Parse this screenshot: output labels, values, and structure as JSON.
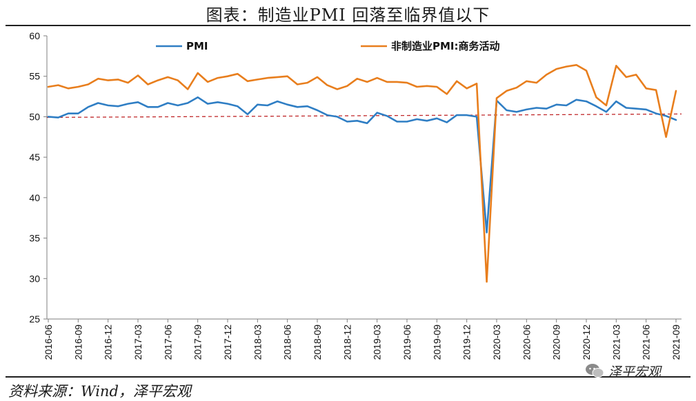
{
  "title": "图表：制造业PMI 回落至临界值以下",
  "source": "资料来源：Wind，泽平宏观",
  "watermark": {
    "text": "泽平宏观",
    "icon": "wechat-icon"
  },
  "colors": {
    "pmi": "#2f7ec4",
    "nonmfg": "#e87e1d",
    "reference": "#c0282a",
    "axis": "#7f7f7f"
  },
  "chart_data": {
    "type": "line",
    "title": "图表：制造业PMI 回落至临界值以下",
    "xlabel": "",
    "ylabel": "",
    "ylim": [
      25,
      60
    ],
    "yticks": [
      25,
      30,
      35,
      40,
      45,
      50,
      55,
      60
    ],
    "x": [
      "2016-06",
      "2016-07",
      "2016-08",
      "2016-09",
      "2016-10",
      "2016-11",
      "2016-12",
      "2017-01",
      "2017-02",
      "2017-03",
      "2017-04",
      "2017-05",
      "2017-06",
      "2017-07",
      "2017-08",
      "2017-09",
      "2017-10",
      "2017-11",
      "2017-12",
      "2018-01",
      "2018-02",
      "2018-03",
      "2018-04",
      "2018-05",
      "2018-06",
      "2018-07",
      "2018-08",
      "2018-09",
      "2018-10",
      "2018-11",
      "2018-12",
      "2019-01",
      "2019-02",
      "2019-03",
      "2019-04",
      "2019-05",
      "2019-06",
      "2019-07",
      "2019-08",
      "2019-09",
      "2019-10",
      "2019-11",
      "2019-12",
      "2020-01",
      "2020-02",
      "2020-03",
      "2020-04",
      "2020-05",
      "2020-06",
      "2020-07",
      "2020-08",
      "2020-09",
      "2020-10",
      "2020-11",
      "2020-12",
      "2021-01",
      "2021-02",
      "2021-03",
      "2021-04",
      "2021-05",
      "2021-06",
      "2021-07",
      "2021-08",
      "2021-09"
    ],
    "xticklabels": [
      "2016-06",
      "2016-09",
      "2016-12",
      "2017-03",
      "2017-06",
      "2017-09",
      "2017-12",
      "2018-03",
      "2018-06",
      "2018-09",
      "2018-12",
      "2019-03",
      "2019-06",
      "2019-09",
      "2019-12",
      "2020-03",
      "2020-06",
      "2020-09",
      "2020-12",
      "2021-03",
      "2021-06",
      "2021-09"
    ],
    "series": [
      {
        "name": "PMI",
        "color": "#2f7ec4",
        "values": [
          50.0,
          49.9,
          50.4,
          50.4,
          51.2,
          51.7,
          51.4,
          51.3,
          51.6,
          51.8,
          51.2,
          51.2,
          51.7,
          51.4,
          51.7,
          52.4,
          51.6,
          51.8,
          51.6,
          51.3,
          50.3,
          51.5,
          51.4,
          51.9,
          51.5,
          51.2,
          51.3,
          50.8,
          50.2,
          50.0,
          49.4,
          49.5,
          49.2,
          50.5,
          50.1,
          49.4,
          49.4,
          49.7,
          49.5,
          49.8,
          49.3,
          50.2,
          50.2,
          50.0,
          35.7,
          52.0,
          50.8,
          50.6,
          50.9,
          51.1,
          51.0,
          51.5,
          51.4,
          52.1,
          51.9,
          51.3,
          50.6,
          51.9,
          51.1,
          51.0,
          50.9,
          50.4,
          50.1,
          49.6
        ]
      },
      {
        "name": "非制造业PMI:商务活动",
        "color": "#e87e1d",
        "values": [
          53.7,
          53.9,
          53.5,
          53.7,
          54.0,
          54.7,
          54.5,
          54.6,
          54.2,
          55.1,
          54.0,
          54.5,
          54.9,
          54.5,
          53.4,
          55.4,
          54.3,
          54.8,
          55.0,
          55.3,
          54.4,
          54.6,
          54.8,
          54.9,
          55.0,
          54.0,
          54.2,
          54.9,
          53.9,
          53.4,
          53.8,
          54.7,
          54.3,
          54.8,
          54.3,
          54.3,
          54.2,
          53.7,
          53.8,
          53.7,
          52.8,
          54.4,
          53.5,
          54.1,
          29.6,
          52.3,
          53.2,
          53.6,
          54.4,
          54.2,
          55.2,
          55.9,
          56.2,
          56.4,
          55.7,
          52.4,
          51.4,
          56.3,
          54.9,
          55.2,
          53.5,
          53.3,
          47.5,
          53.2
        ]
      }
    ],
    "reference_line": {
      "value": 50,
      "style": "dashed",
      "color": "#c0282a"
    },
    "legend": "top",
    "grid": false
  }
}
